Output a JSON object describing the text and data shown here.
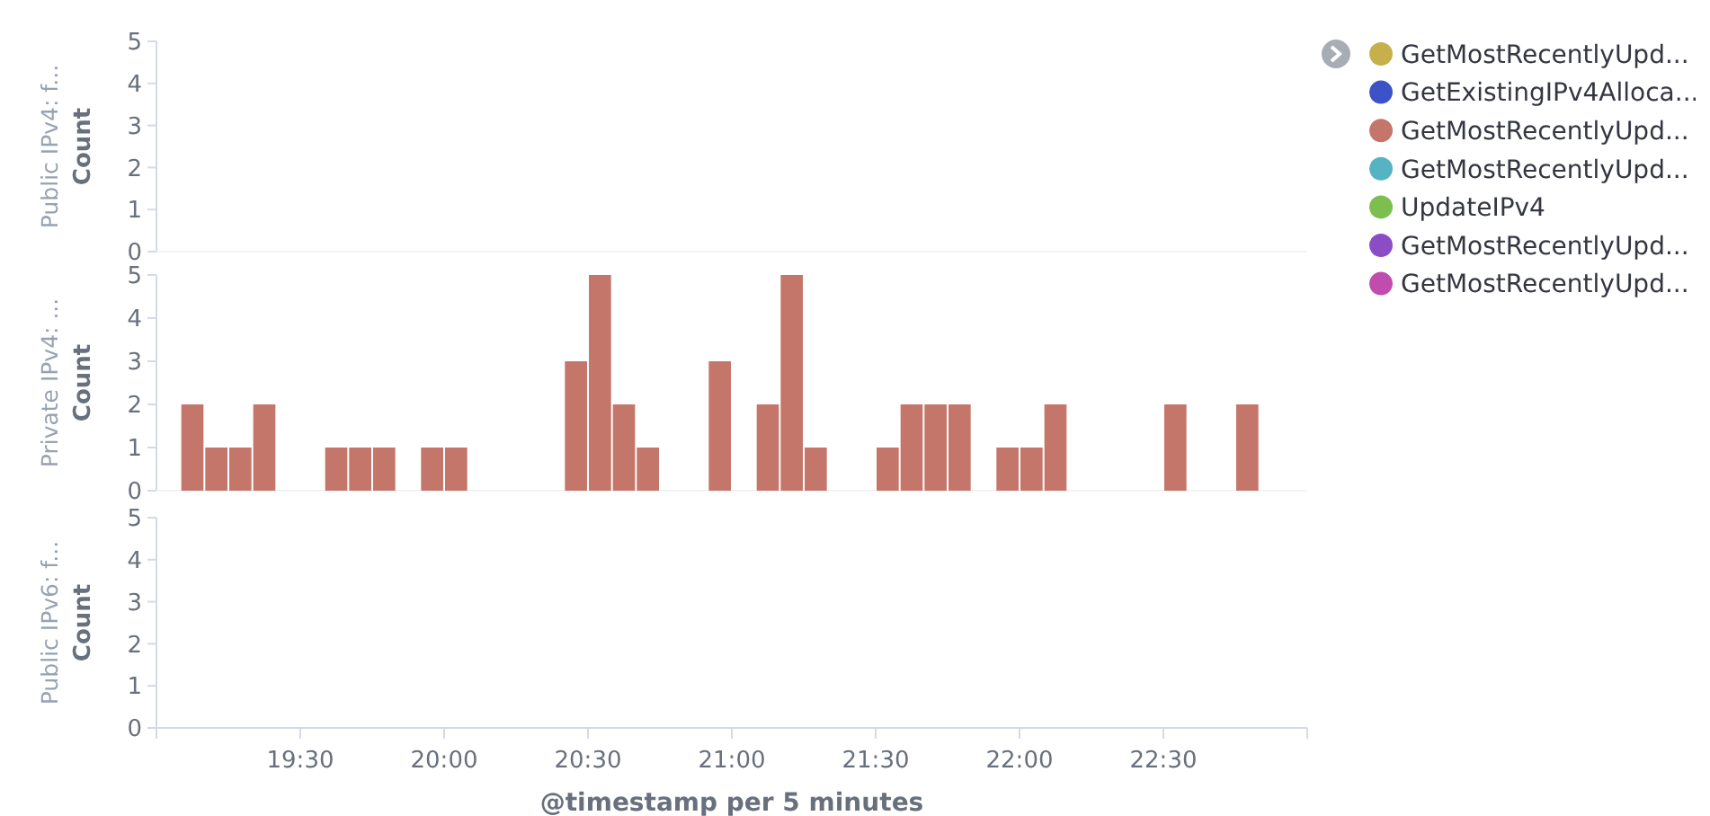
{
  "chart_data": [
    {
      "type": "bar",
      "title": "Public IPv4: f...",
      "ylabel": "Count",
      "xlim": [
        19,
        23
      ],
      "ylim": [
        0,
        5
      ],
      "yticks": [
        0,
        1,
        2,
        3,
        4,
        5
      ],
      "tick_labels": "y"
    },
    {
      "type": "bar",
      "title": "Private IPv4: ...",
      "ylabel": "Count",
      "legend": "right",
      "x": [
        19.125,
        19.2083,
        19.2917,
        19.375,
        19.625,
        19.7083,
        19.7917,
        19.9583,
        20.0417,
        20.4583,
        20.5417,
        20.625,
        20.7083,
        20.9583,
        21.125,
        21.2083,
        21.2917,
        21.5417,
        21.625,
        21.7083,
        21.7917,
        21.9583,
        22.0417,
        22.125,
        22.5417,
        22.7917
      ],
      "series": [
        {
          "name": "GetMostRecentlyUpd...",
          "color": "#c6b04c",
          "values": [
            0,
            0,
            0,
            0,
            0,
            0,
            0,
            0,
            0,
            0,
            0,
            0,
            0,
            0,
            0,
            0,
            0,
            0,
            0,
            0,
            0,
            0,
            0,
            0,
            0,
            0
          ]
        },
        {
          "name": "GetExistingIPv4Alloca...",
          "color": "#3d52c6",
          "values": [
            0,
            0,
            0,
            0,
            0,
            0,
            0,
            0,
            0,
            0,
            0,
            0,
            0,
            0,
            0,
            0,
            0,
            0,
            0,
            0,
            0,
            0,
            0,
            0,
            0,
            0
          ]
        },
        {
          "name": "GetMostRecentlyUpd...",
          "color": "#c4766a",
          "values": [
            2,
            1,
            1,
            2,
            1,
            1,
            1,
            1,
            1,
            3,
            5,
            2,
            1,
            3,
            2,
            5,
            1,
            1,
            2,
            2,
            2,
            1,
            1,
            2,
            2,
            2
          ]
        },
        {
          "name": "GetMostRecentlyUpd...",
          "color": "#56b3c4",
          "values": [
            0,
            0,
            0,
            0,
            0,
            0,
            0,
            0,
            0,
            0,
            0,
            0,
            0,
            0,
            0,
            0,
            0,
            0,
            0,
            0,
            0,
            0,
            0,
            0,
            0,
            0
          ]
        },
        {
          "name": "UpdateIPv4",
          "color": "#7cbf4f",
          "values": [
            0,
            0,
            0,
            0,
            0,
            0,
            0,
            0,
            0,
            0,
            0,
            0,
            0,
            0,
            0,
            0,
            0,
            0,
            0,
            0,
            0,
            0,
            0,
            0,
            0,
            0
          ]
        },
        {
          "name": "GetMostRecentlyUpd...",
          "color": "#8b4cc6",
          "values": [
            0,
            0,
            0,
            0,
            0,
            0,
            0,
            0,
            0,
            0,
            0,
            0,
            0,
            0,
            0,
            0,
            0,
            0,
            0,
            0,
            0,
            0,
            0,
            0,
            0,
            0
          ]
        },
        {
          "name": "GetMostRecentlyUpd...",
          "color": "#c04dae",
          "values": [
            0,
            0,
            0,
            0,
            0,
            0,
            0,
            0,
            0,
            0,
            0,
            0,
            0,
            0,
            0,
            0,
            0,
            0,
            0,
            0,
            0,
            0,
            0,
            0,
            0,
            0
          ]
        }
      ],
      "xlim": [
        19,
        23
      ],
      "ylim": [
        0,
        5
      ],
      "yticks": [
        0,
        1,
        2,
        3,
        4,
        5
      ],
      "tick_labels": "y"
    },
    {
      "type": "bar",
      "title": "Public IPv6: f...",
      "ylabel": "Count",
      "xlabel": "@timestamp per 5 minutes",
      "xlim": [
        19,
        23
      ],
      "xticks": [
        {
          "value": 19.5,
          "label": "19:30"
        },
        {
          "value": 20,
          "label": "20:00"
        },
        {
          "value": 20.5,
          "label": "20:30"
        },
        {
          "value": 21,
          "label": "21:00"
        },
        {
          "value": 21.5,
          "label": "21:30"
        },
        {
          "value": 22,
          "label": "22:00"
        },
        {
          "value": 22.5,
          "label": "22:30"
        }
      ],
      "ylim": [
        0,
        5
      ],
      "yticks": [
        0,
        1,
        2,
        3,
        4,
        5
      ]
    }
  ]
}
